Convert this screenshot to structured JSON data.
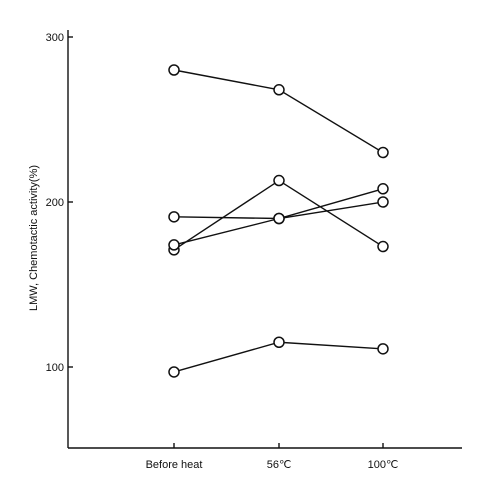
{
  "chart_data": {
    "type": "line",
    "title": "",
    "xlabel": "",
    "ylabel": "LMW, Chemotactic activity(%)",
    "categories": [
      "Before heat",
      "56℃",
      "100℃"
    ],
    "y_ticks": [
      100,
      200,
      300
    ],
    "y_tick_labels": [
      "100",
      "200",
      "300"
    ],
    "ylim": [
      50,
      305
    ],
    "grid": false,
    "legend": "none",
    "series": [
      {
        "values": [
          280,
          268,
          230
        ]
      },
      {
        "values": [
          191,
          190,
          208
        ]
      },
      {
        "values": [
          171,
          213,
          173
        ]
      },
      {
        "values": [
          174,
          190,
          200
        ]
      },
      {
        "values": [
          97,
          115,
          111
        ]
      }
    ]
  }
}
